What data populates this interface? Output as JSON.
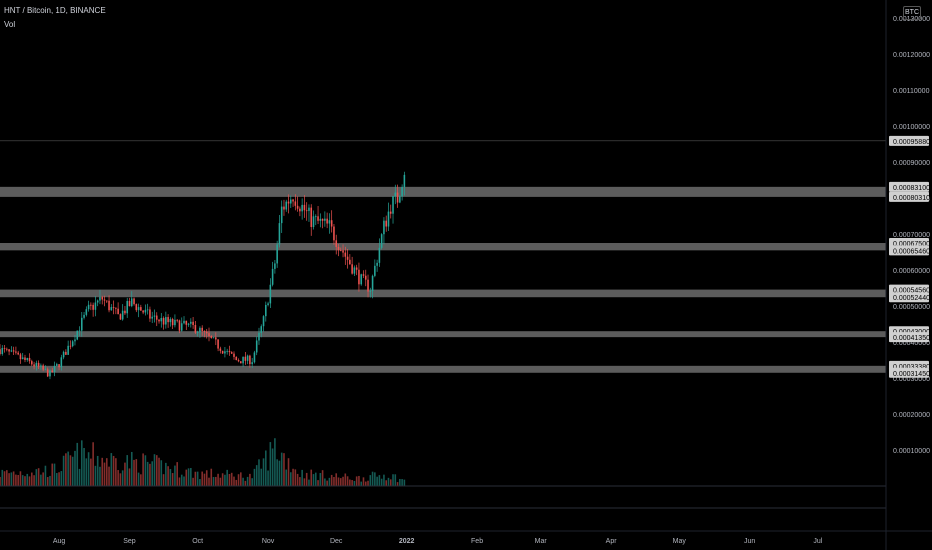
{
  "header": {
    "symbol": "HNT / Bitcoin, 1D, BINANCE",
    "volume_label": "Vol",
    "currency": "BTC"
  },
  "colors": {
    "background": "#000000",
    "up": "#26a69a",
    "down": "#ef5350",
    "band": "#808080",
    "text": "#b2b5be"
  },
  "chart_data": {
    "type": "candlestick",
    "title": "HNT / Bitcoin, 1D, BINANCE",
    "xlabel": "",
    "ylabel": "",
    "x_ticks": [
      "Aug",
      "Sep",
      "Oct",
      "Nov",
      "Dec",
      "2022",
      "Feb",
      "Mar",
      "Apr",
      "May",
      "Jun",
      "Jul"
    ],
    "y_ticks": [
      "0.00010000",
      "0.00020000",
      "0.00030000",
      "0.00040000",
      "0.00050000",
      "0.00060000",
      "0.00070000",
      "0.00080000",
      "0.00090000",
      "0.00100000",
      "0.00110000",
      "0.00120000",
      "0.00130000"
    ],
    "ylim": [
      0.0,
      0.00135
    ],
    "x_range": [
      "2021-07-06",
      "2022-07-31"
    ],
    "last_date": "2021-12-31",
    "price_labels": [
      "0.00095880",
      "0.00083100",
      "0.00080310",
      "0.00067500",
      "0.00065460",
      "0.00054560",
      "0.00052440",
      "0.00043000",
      "0.00041350",
      "0.00033380",
      "0.00031450"
    ],
    "horizontal_line": 0.0009588,
    "zones": [
      [
        0.0008031,
        0.000831
      ],
      [
        0.0006546,
        0.000675
      ],
      [
        0.0005244,
        0.0005456
      ],
      [
        0.0004135,
        0.00043
      ],
      [
        0.0003145,
        0.0003338
      ]
    ],
    "price_anchors": [
      [
        "2021-07-06",
        0.00038
      ],
      [
        "2021-07-20",
        0.00034
      ],
      [
        "2021-07-28",
        0.00031
      ],
      [
        "2021-08-01",
        0.00034
      ],
      [
        "2021-08-08",
        0.00042
      ],
      [
        "2021-08-14",
        0.00049
      ],
      [
        "2021-08-20",
        0.00052
      ],
      [
        "2021-08-27",
        0.00047
      ],
      [
        "2021-09-02",
        0.00051
      ],
      [
        "2021-09-10",
        0.00047
      ],
      [
        "2021-09-20",
        0.00045
      ],
      [
        "2021-09-30",
        0.00044
      ],
      [
        "2021-10-08",
        0.0004
      ],
      [
        "2021-10-18",
        0.00035
      ],
      [
        "2021-10-25",
        0.00035
      ],
      [
        "2021-10-30",
        0.00046
      ],
      [
        "2021-11-04",
        0.00062
      ],
      [
        "2021-11-07",
        0.00077
      ],
      [
        "2021-11-12",
        0.00081
      ],
      [
        "2021-11-20",
        0.00074
      ],
      [
        "2021-11-28",
        0.00072
      ],
      [
        "2021-12-05",
        0.00064
      ],
      [
        "2021-12-12",
        0.00057
      ],
      [
        "2021-12-16",
        0.00055
      ],
      [
        "2021-12-22",
        0.00072
      ],
      [
        "2021-12-25",
        0.00078
      ],
      [
        "2021-12-28",
        0.0008
      ],
      [
        "2021-12-31",
        0.00088
      ]
    ],
    "volume": {
      "max": 0.00011,
      "anchors": [
        [
          "2021-07-06",
          2e-05
        ],
        [
          "2021-07-30",
          2.5e-05
        ],
        [
          "2021-08-10",
          5e-05
        ],
        [
          "2021-08-25",
          4e-05
        ],
        [
          "2021-09-10",
          3.5e-05
        ],
        [
          "2021-10-01",
          2e-05
        ],
        [
          "2021-10-25",
          1.5e-05
        ],
        [
          "2021-11-04",
          6e-05
        ],
        [
          "2021-11-15",
          2e-05
        ],
        [
          "2021-12-10",
          1.2e-05
        ],
        [
          "2021-12-24",
          1.8e-05
        ],
        [
          "2021-12-31",
          8e-06
        ]
      ]
    }
  }
}
